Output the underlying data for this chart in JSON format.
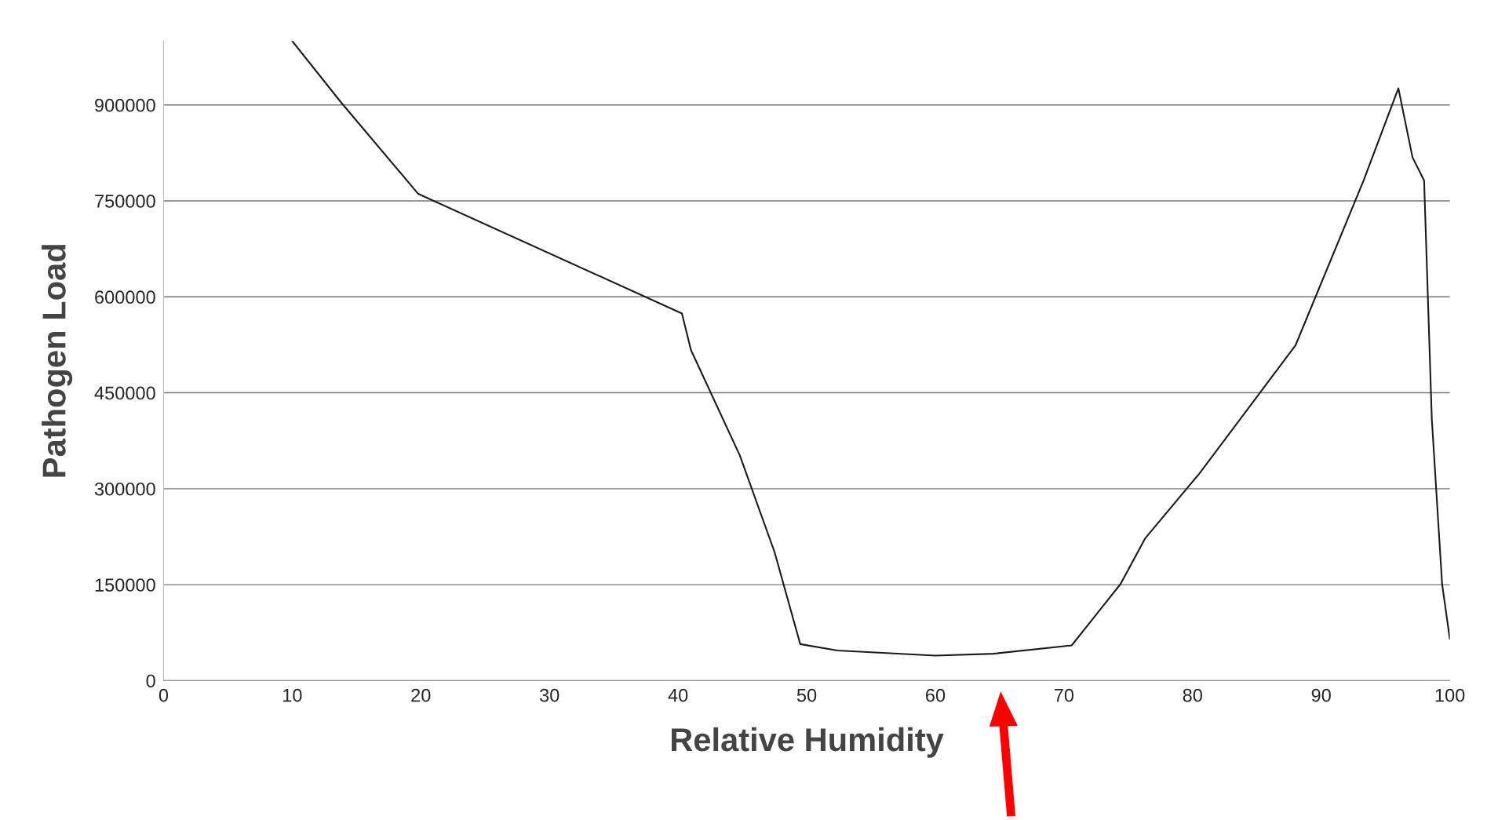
{
  "chart_data": {
    "type": "line",
    "xlabel": "Relative Humidity",
    "ylabel": "Pathogen Load",
    "x": [
      10,
      13.8,
      19.8,
      40.3,
      41,
      44.8,
      47.5,
      49.5,
      52.4,
      60,
      64.5,
      70.6,
      72.1,
      74.4,
      76.3,
      80.5,
      88,
      93.3,
      96,
      97.1,
      98,
      98.6,
      99.4,
      100
    ],
    "series": [
      {
        "color": "#1a1a1a",
        "values": [
          1000000,
          904000,
          761000,
          574000,
          517000,
          352000,
          201000,
          57000,
          47000,
          39000,
          42000,
          55000,
          93000,
          151000,
          222000,
          323000,
          524000,
          782000,
          926000,
          818000,
          782000,
          409000,
          151000,
          65000
        ]
      }
    ],
    "xlim": [
      0,
      100
    ],
    "ylim": [
      0,
      1000000
    ],
    "xticks": [
      0,
      10,
      20,
      30,
      40,
      50,
      60,
      70,
      80,
      90,
      100
    ],
    "yticks": [
      0,
      150000,
      300000,
      450000,
      600000,
      750000,
      900000
    ],
    "grid": "y",
    "legend": false,
    "marker": "none",
    "line_style": "solid"
  }
}
